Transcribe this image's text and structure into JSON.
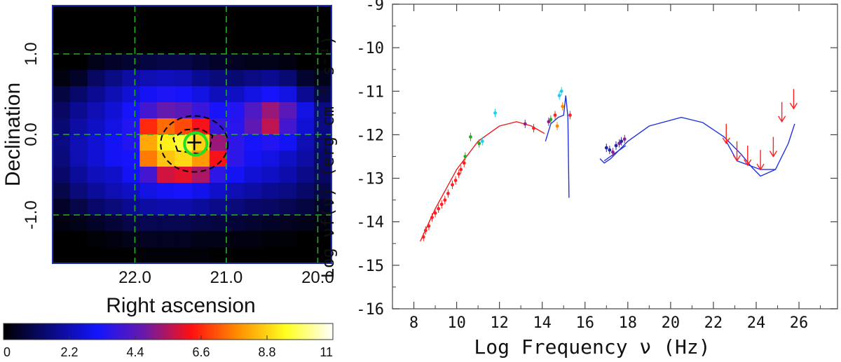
{
  "colors": {
    "frame_blue": "#1f2fb0",
    "grid_green": "#22b022",
    "ellipse": "#000000",
    "circle_green": "#22dd22",
    "opt_red": "#ff2020",
    "model_red": "#e82020",
    "model_blue": "#2233dd"
  },
  "chart_data": [
    {
      "type": "heatmap",
      "xlabel": "Right ascension",
      "ylabel": "Declination",
      "x_ticks": [
        "22.0",
        "21.0",
        "20.0"
      ],
      "y_ticks": [
        "1.0",
        "0.0",
        "-1.0"
      ],
      "xlim": [
        22.9,
        19.85
      ],
      "ylim": [
        -1.6,
        1.6
      ],
      "colorbar": {
        "min": 0,
        "max": 11,
        "tick_labels": [
          "0",
          "2.2",
          "4.4",
          "6.6",
          "8.8",
          "11"
        ],
        "stops": [
          "#000000",
          "#0a0a80",
          "#1414ff",
          "#6a1aa8",
          "#ff1010",
          "#ff9000",
          "#ffff20",
          "#ffffff"
        ]
      },
      "grid_ra": [
        22.0,
        21.0,
        20.0
      ],
      "grid_dec": [
        1.0,
        0.0,
        -1.0
      ],
      "marker": {
        "ra": 21.35,
        "dec": -0.1,
        "symbol": "+"
      },
      "grid_shape": [
        16,
        16
      ],
      "values": [
        [
          0,
          0,
          0,
          0,
          0,
          0,
          0,
          0,
          0,
          0,
          0,
          0,
          0,
          0,
          0,
          0
        ],
        [
          0,
          0,
          0,
          0,
          0,
          0,
          0,
          0,
          0,
          0,
          0,
          0,
          0,
          0,
          0,
          0
        ],
        [
          0,
          0,
          0,
          0,
          0,
          0,
          0,
          0,
          0,
          0,
          0,
          0,
          0,
          0,
          0,
          0
        ],
        [
          0,
          0,
          0.3,
          0.5,
          0.6,
          0.8,
          0.9,
          0.9,
          0.7,
          0.5,
          0.4,
          0.3,
          0.3,
          0.2,
          0,
          0
        ],
        [
          0.2,
          0.5,
          1.2,
          1.6,
          2.0,
          2.2,
          2.3,
          2.2,
          1.8,
          1.5,
          1.4,
          1.6,
          1.8,
          1.4,
          0.6,
          0.3
        ],
        [
          0.8,
          1.3,
          1.8,
          2.2,
          2.6,
          3.0,
          3.3,
          3.2,
          2.8,
          2.3,
          2.4,
          2.8,
          3.2,
          2.8,
          1.8,
          0.9
        ],
        [
          1.2,
          1.8,
          2.2,
          2.6,
          3.2,
          4.0,
          4.6,
          4.4,
          3.8,
          3.2,
          3.4,
          4.2,
          5.2,
          4.4,
          2.8,
          1.6
        ],
        [
          1.4,
          2.0,
          2.4,
          2.8,
          3.4,
          6.6,
          7.4,
          7.0,
          6.2,
          3.8,
          3.5,
          4.5,
          5.6,
          4.0,
          2.6,
          1.6
        ],
        [
          1.6,
          2.2,
          2.6,
          3.0,
          3.4,
          8.2,
          9.2,
          9.6,
          8.8,
          5.2,
          3.6,
          3.2,
          3.4,
          3.0,
          2.2,
          1.4
        ],
        [
          1.5,
          2.2,
          2.6,
          3.0,
          3.2,
          7.6,
          8.6,
          8.9,
          8.0,
          6.2,
          3.6,
          3.0,
          2.8,
          2.4,
          2.0,
          1.3
        ],
        [
          1.3,
          1.9,
          2.3,
          2.5,
          3.0,
          4.0,
          5.8,
          6.0,
          5.4,
          3.6,
          3.0,
          2.6,
          2.4,
          2.1,
          1.7,
          1.2
        ],
        [
          0.9,
          1.5,
          1.9,
          2.2,
          2.4,
          2.8,
          3.0,
          3.2,
          2.9,
          2.5,
          2.2,
          2.0,
          1.8,
          1.6,
          1.3,
          0.9
        ],
        [
          0.5,
          0.9,
          1.3,
          1.5,
          1.8,
          2.0,
          2.1,
          2.1,
          1.9,
          1.7,
          1.5,
          1.3,
          1.2,
          1.0,
          0.8,
          0.5
        ],
        [
          0.2,
          0.3,
          0.5,
          0.7,
          0.9,
          1.0,
          1.0,
          1.0,
          0.9,
          0.8,
          0.7,
          0.6,
          0.5,
          0.4,
          0.3,
          0.2
        ],
        [
          0,
          0,
          0.1,
          0.2,
          0.3,
          0.4,
          0.4,
          0.4,
          0.3,
          0.3,
          0.2,
          0.2,
          0.1,
          0.1,
          0,
          0
        ],
        [
          0,
          0,
          0,
          0,
          0,
          0.1,
          0.1,
          0.1,
          0.1,
          0,
          0,
          0,
          0,
          0,
          0,
          0
        ]
      ]
    },
    {
      "type": "scatter",
      "xlabel": "Log Frequency ν (Hz)",
      "ylabel": "Log νf(ν) (erg cm⁻² s⁻¹)",
      "xlim": [
        7,
        27.8
      ],
      "ylim": [
        -16,
        -9
      ],
      "x_ticks": [
        8,
        10,
        12,
        14,
        16,
        18,
        20,
        22,
        24,
        26
      ],
      "y_ticks": [
        -16,
        -15,
        -14,
        -13,
        -12,
        -11,
        -10,
        -9
      ],
      "series": [
        {
          "color": "#ff2020",
          "points": [
            [
              8.45,
              -14.35
            ],
            [
              8.55,
              -14.2
            ],
            [
              8.7,
              -14.1
            ],
            [
              8.85,
              -13.9
            ],
            [
              9.0,
              -13.8
            ],
            [
              9.15,
              -13.7
            ],
            [
              9.3,
              -13.6
            ],
            [
              9.45,
              -13.5
            ],
            [
              9.6,
              -13.35
            ],
            [
              9.8,
              -13.15
            ],
            [
              9.95,
              -13.05
            ],
            [
              10.1,
              -12.9
            ],
            [
              10.2,
              -12.8
            ],
            [
              10.35,
              -12.65
            ],
            [
              13.6,
              -11.85
            ],
            [
              14.6,
              -11.55
            ],
            [
              15.3,
              -11.55
            ]
          ]
        },
        {
          "color": "#22aa22",
          "points": [
            [
              10.4,
              -12.5
            ],
            [
              10.65,
              -12.05
            ],
            [
              11.05,
              -12.2
            ],
            [
              14.4,
              -11.65
            ]
          ]
        },
        {
          "color": "#22ccee",
          "points": [
            [
              11.8,
              -11.5
            ],
            [
              11.2,
              -12.15
            ],
            [
              14.8,
              -11.1
            ],
            [
              14.9,
              -11.0
            ]
          ]
        },
        {
          "color": "#882288",
          "points": [
            [
              13.2,
              -11.75
            ],
            [
              14.3,
              -11.7
            ],
            [
              17.3,
              -12.4
            ],
            [
              17.6,
              -12.2
            ],
            [
              17.85,
              -12.1
            ]
          ]
        },
        {
          "color": "#ff8800",
          "points": [
            [
              14.7,
              -11.8
            ],
            [
              14.95,
              -11.35
            ]
          ]
        },
        {
          "color": "#2222aa",
          "points": [
            [
              17.0,
              -12.3
            ],
            [
              17.15,
              -12.35
            ],
            [
              17.45,
              -12.25
            ],
            [
              17.7,
              -12.15
            ]
          ]
        }
      ],
      "upper_limits": [
        [
          22.6,
          -12.2
        ],
        [
          23.1,
          -12.6
        ],
        [
          23.6,
          -12.7
        ],
        [
          24.2,
          -12.8
        ],
        [
          24.8,
          -12.5
        ],
        [
          25.2,
          -11.7
        ],
        [
          25.75,
          -11.4
        ]
      ],
      "models": [
        {
          "color": "#e82020",
          "points": [
            [
              8.3,
              -14.45
            ],
            [
              9.0,
              -13.7
            ],
            [
              10.0,
              -12.8
            ],
            [
              11.0,
              -12.15
            ],
            [
              12.0,
              -11.8
            ],
            [
              12.8,
              -11.7
            ],
            [
              13.5,
              -11.8
            ],
            [
              14.1,
              -11.97
            ]
          ]
        },
        {
          "color": "#2233dd",
          "points": [
            [
              14.15,
              -12.15
            ],
            [
              14.4,
              -11.75
            ],
            [
              14.75,
              -11.6
            ],
            [
              15.0,
              -11.55
            ],
            [
              15.1,
              -11.1
            ],
            [
              15.2,
              -11.6
            ],
            [
              15.25,
              -13.45
            ]
          ]
        },
        {
          "color": "#2233dd",
          "points": [
            [
              16.7,
              -12.55
            ],
            [
              16.9,
              -12.65
            ],
            [
              17.2,
              -12.55
            ],
            [
              17.6,
              -12.35
            ],
            [
              18.0,
              -12.15
            ],
            [
              19.0,
              -11.8
            ],
            [
              20.5,
              -11.6
            ],
            [
              21.5,
              -11.72
            ],
            [
              22.5,
              -12.05
            ],
            [
              23.3,
              -12.45
            ],
            [
              23.8,
              -12.75
            ],
            [
              24.2,
              -12.95
            ],
            [
              24.9,
              -12.8
            ],
            [
              25.5,
              -12.2
            ],
            [
              25.8,
              -11.75
            ]
          ]
        },
        {
          "color": "#2233dd",
          "points": [
            [
              22.6,
              -12.15
            ],
            [
              23.1,
              -12.6
            ],
            [
              24.2,
              -12.8
            ],
            [
              24.9,
              -12.8
            ]
          ]
        },
        {
          "color": "#2233dd",
          "points": [
            [
              16.9,
              -12.6
            ],
            [
              17.9,
              -12.25
            ]
          ]
        }
      ]
    }
  ]
}
